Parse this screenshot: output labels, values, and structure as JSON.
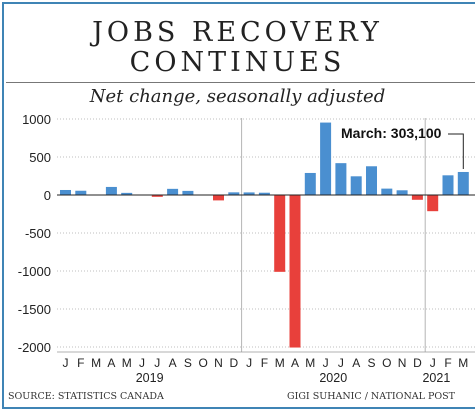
{
  "chart_data": {
    "type": "bar",
    "title_line1": "JOBS RECOVERY",
    "title_line2": "CONTINUES",
    "subtitle": "Net change, seasonally adjusted",
    "ylim": [
      -2000,
      1000
    ],
    "yticks": [
      "1000",
      "500",
      "0",
      "-500",
      "-1000",
      "-1500",
      "-2000"
    ],
    "categories": [
      "2019-01",
      "2019-02",
      "2019-03",
      "2019-04",
      "2019-05",
      "2019-06",
      "2019-07",
      "2019-08",
      "2019-09",
      "2019-10",
      "2019-11",
      "2019-12",
      "2020-01",
      "2020-02",
      "2020-03",
      "2020-04",
      "2020-05",
      "2020-06",
      "2020-07",
      "2020-08",
      "2020-09",
      "2020-10",
      "2020-11",
      "2020-12",
      "2021-01",
      "2021-02",
      "2021-03"
    ],
    "month_labels": [
      "J",
      "F",
      "M",
      "A",
      "M",
      "J",
      "J",
      "A",
      "S",
      "O",
      "N",
      "D",
      "J",
      "F",
      "M",
      "A",
      "M",
      "J",
      "J",
      "A",
      "S",
      "O",
      "N",
      "D",
      "J",
      "F",
      "M"
    ],
    "values": [
      66,
      56,
      5,
      106,
      28,
      2,
      -24,
      81,
      54,
      2,
      -71,
      35,
      34,
      30,
      -1011,
      -2007,
      290,
      953,
      419,
      246,
      378,
      84,
      62,
      -63,
      -213,
      259,
      303
    ],
    "positive_color": "#4a8fd0",
    "negative_color": "#e8403b",
    "year_labels": [
      "2019",
      "2020",
      "2021"
    ],
    "annotation": "March: 303,100",
    "grid": true
  },
  "footer": {
    "source": "SOURCE: STATISTICS CANADA",
    "credit": "GIGI SUHANIC / NATIONAL POST"
  }
}
